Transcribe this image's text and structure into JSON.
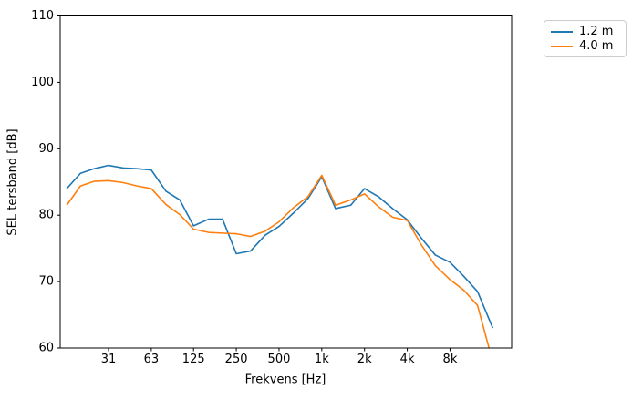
{
  "figure": {
    "xlabel": "Frekvens [Hz]",
    "ylabel": "SEL tersband [dB]",
    "background_color": "#ffffff",
    "spine_color": "#000000"
  },
  "chart_data": {
    "type": "line",
    "title": "",
    "xlabel": "Frekvens [Hz]",
    "ylabel": "SEL tersband [dB]",
    "x_scale": "log",
    "grid": false,
    "legend_position": "outside-top-right",
    "ylim": [
      60,
      110
    ],
    "y_ticks": [
      60,
      70,
      80,
      90,
      100,
      110
    ],
    "x_ticks": [
      {
        "value": 31.5,
        "label": "31"
      },
      {
        "value": 63,
        "label": "63"
      },
      {
        "value": 125,
        "label": "125"
      },
      {
        "value": 250,
        "label": "250"
      },
      {
        "value": 500,
        "label": "500"
      },
      {
        "value": 1000,
        "label": "1k"
      },
      {
        "value": 2000,
        "label": "2k"
      },
      {
        "value": 4000,
        "label": "4k"
      },
      {
        "value": 8000,
        "label": "8k"
      }
    ],
    "x": [
      16,
      20,
      25,
      31.5,
      40,
      50,
      63,
      80,
      100,
      125,
      160,
      200,
      250,
      315,
      400,
      500,
      630,
      800,
      1000,
      1250,
      1600,
      2000,
      2500,
      3150,
      4000,
      5000,
      6300,
      8000,
      10000,
      12500,
      16000
    ],
    "series": [
      {
        "name": "1.2 m",
        "color": "#1f77b4",
        "values": [
          84.0,
          86.3,
          87.0,
          87.5,
          87.1,
          87.0,
          86.8,
          83.6,
          82.3,
          78.4,
          79.4,
          79.4,
          74.2,
          74.6,
          77.0,
          78.3,
          80.3,
          82.5,
          85.8,
          81.0,
          81.5,
          84.0,
          82.8,
          81.0,
          79.3,
          76.6,
          74.0,
          72.9,
          70.8,
          68.5,
          63.0
        ]
      },
      {
        "name": "4.0 m",
        "color": "#ff7f0e",
        "values": [
          81.5,
          84.4,
          85.1,
          85.2,
          84.9,
          84.4,
          84.0,
          81.6,
          80.1,
          77.9,
          77.4,
          77.3,
          77.2,
          76.8,
          77.6,
          79.0,
          81.1,
          82.8,
          86.0,
          81.5,
          82.3,
          83.2,
          81.3,
          79.7,
          79.2,
          75.6,
          72.4,
          70.3,
          68.7,
          66.4,
          57.9
        ]
      }
    ]
  }
}
